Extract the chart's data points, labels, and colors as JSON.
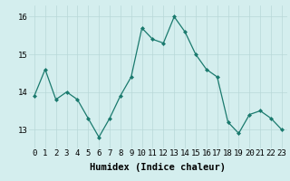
{
  "x": [
    0,
    1,
    2,
    3,
    4,
    5,
    6,
    7,
    8,
    9,
    10,
    11,
    12,
    13,
    14,
    15,
    16,
    17,
    18,
    19,
    20,
    21,
    22,
    23
  ],
  "y": [
    13.9,
    14.6,
    13.8,
    14.0,
    13.8,
    13.3,
    12.8,
    13.3,
    13.9,
    14.4,
    15.7,
    15.4,
    15.3,
    16.0,
    15.6,
    15.0,
    14.6,
    14.4,
    13.2,
    12.9,
    13.4,
    13.5,
    13.3,
    13.0
  ],
  "line_color": "#1a7a6e",
  "marker": "D",
  "marker_size": 2.0,
  "bg_color": "#d4eeee",
  "grid_color": "#b8d8d8",
  "xlabel": "Humidex (Indice chaleur)",
  "xlabel_fontsize": 7.5,
  "yticks": [
    13,
    14,
    15,
    16
  ],
  "xticks": [
    0,
    1,
    2,
    3,
    4,
    5,
    6,
    7,
    8,
    9,
    10,
    11,
    12,
    13,
    14,
    15,
    16,
    17,
    18,
    19,
    20,
    21,
    22,
    23
  ],
  "ylim": [
    12.5,
    16.3
  ],
  "xlim": [
    -0.5,
    23.5
  ],
  "tick_fontsize": 6.5,
  "linewidth": 0.9
}
